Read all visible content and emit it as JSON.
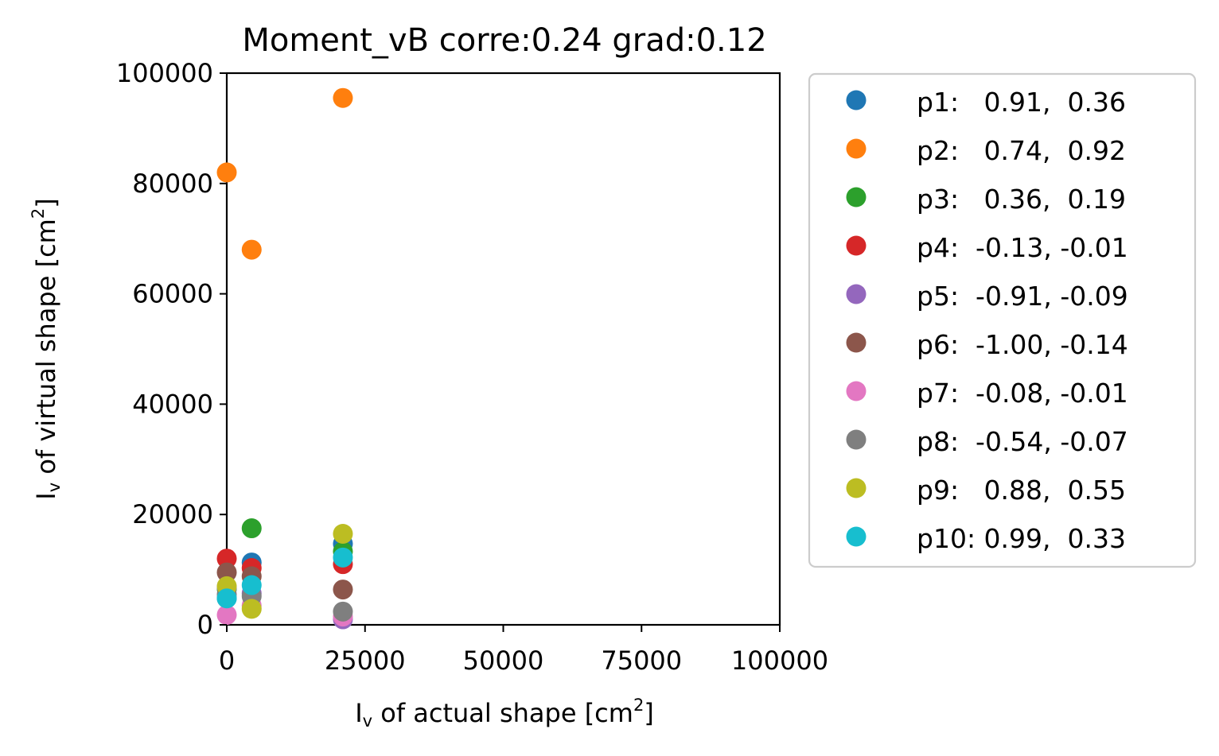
{
  "chart_data": {
    "type": "scatter",
    "title": "Moment_vB corre:0.24 grad:0.12",
    "xlabel": {
      "pre": "I",
      "sub": "v",
      "mid": " of actual shape [cm",
      "sup": "2",
      "post": "]"
    },
    "ylabel": {
      "pre": "I",
      "sub": "v",
      "mid": " of virtual shape [cm",
      "sup": "2",
      "post": "]"
    },
    "xlim": [
      0,
      100000
    ],
    "ylim": [
      0,
      100000
    ],
    "xticks": [
      "0",
      "25000",
      "50000",
      "75000",
      "100000"
    ],
    "yticks": [
      "0",
      "20000",
      "40000",
      "60000",
      "80000",
      "100000"
    ],
    "x_tick_values": [
      0,
      25000,
      50000,
      75000,
      100000
    ],
    "y_tick_values": [
      0,
      20000,
      40000,
      60000,
      80000,
      100000
    ],
    "x": [
      0,
      4500,
      21000
    ],
    "legend_position": "outside-right",
    "series": [
      {
        "name": "p1:   0.91,  0.36",
        "color": "#1f77b4",
        "values": [
          4800,
          11300,
          14700
        ]
      },
      {
        "name": "p2:   0.74,  0.92",
        "color": "#ff7f0e",
        "values": [
          82000,
          68000,
          95500
        ]
      },
      {
        "name": "p3:   0.36,  0.19",
        "color": "#2ca02c",
        "values": [
          6500,
          17500,
          13300
        ]
      },
      {
        "name": "p4:  -0.13, -0.01",
        "color": "#d62728",
        "values": [
          12000,
          10300,
          11000
        ]
      },
      {
        "name": "p5:  -0.91, -0.09",
        "color": "#9467bd",
        "values": [
          6800,
          5700,
          1000
        ]
      },
      {
        "name": "p6:  -1.00, -0.14",
        "color": "#8c564b",
        "values": [
          9500,
          8800,
          6400
        ]
      },
      {
        "name": "p7:  -0.08, -0.01",
        "color": "#e377c2",
        "values": [
          1800,
          3500,
          1500
        ]
      },
      {
        "name": "p8:  -0.54, -0.07",
        "color": "#7f7f7f",
        "values": [
          5500,
          5200,
          2400
        ]
      },
      {
        "name": "p9:   0.88,  0.55",
        "color": "#bcbd22",
        "values": [
          7000,
          2900,
          16500
        ]
      },
      {
        "name": "p10: 0.99,  0.33",
        "color": "#17becf",
        "values": [
          4800,
          7200,
          12200
        ]
      }
    ]
  }
}
